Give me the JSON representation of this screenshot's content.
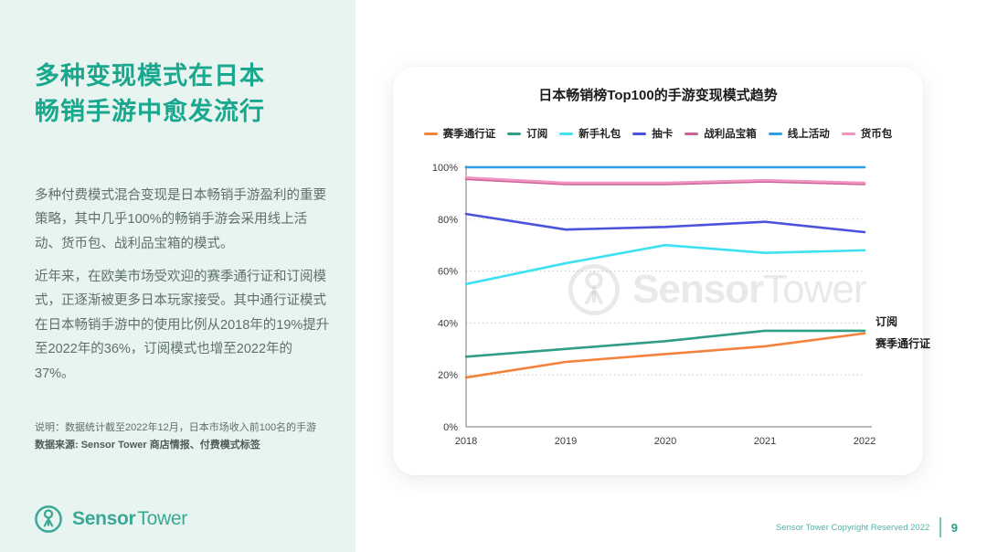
{
  "sidebar": {
    "title_line1": "多种变现模式在日本",
    "title_line2": "畅销手游中愈发流行",
    "paragraph1": "多种付费模式混合变现是日本畅销手游盈利的重要策略，其中几乎100%的畅销手游会采用线上活动、货币包、战利品宝箱的模式。",
    "paragraph2": "近年来，在欧美市场受欢迎的赛季通行证和订阅模式，正逐渐被更多日本玩家接受。其中通行证模式在日本畅销手游中的使用比例从2018年的19%提升至2022年的36%，订阅模式也增至2022年的37%。",
    "note_line1": "说明：数据统计截至2022年12月，日本市场收入前100名的手游",
    "note_line2": "数据来源: Sensor Tower 商店情报、付费模式标签",
    "logo": {
      "bold": "Sensor",
      "light": "Tower"
    }
  },
  "footer": {
    "copyright": "Sensor Tower Copyright Reserved 2022",
    "page_number": "9"
  },
  "chart_data": {
    "type": "line",
    "title": "日本畅销榜Top100的手游变现模式趋势",
    "x": [
      "2018",
      "2019",
      "2020",
      "2021",
      "2022"
    ],
    "ylim": [
      0,
      100
    ],
    "yticks": [
      "0%",
      "20%",
      "40%",
      "60%",
      "80%",
      "100%"
    ],
    "grid": "horizontal dotted lines at 20/40/60/80/100",
    "legend_position": "top",
    "series": [
      {
        "name": "赛季通行证",
        "color": "#F5823C",
        "values": [
          19,
          25,
          28,
          31,
          36
        ]
      },
      {
        "name": "订阅",
        "color": "#2F9D87",
        "values": [
          27,
          30,
          33,
          37,
          37
        ]
      },
      {
        "name": "新手礼包",
        "color": "#3EE1F2",
        "values": [
          55,
          63,
          70,
          67,
          68
        ]
      },
      {
        "name": "抽卡",
        "color": "#4B52DC",
        "values": [
          82,
          76,
          77,
          79,
          75
        ]
      },
      {
        "name": "战利品宝箱",
        "color": "#CC6299",
        "values": [
          95.5,
          93.5,
          93.5,
          94.5,
          93.5
        ]
      },
      {
        "name": "线上活动",
        "color": "#2E9FE9",
        "values": [
          100,
          100,
          100,
          100,
          100
        ]
      },
      {
        "name": "货币包",
        "color": "#F094C2",
        "values": [
          96,
          94,
          94,
          95,
          94
        ]
      }
    ],
    "end_labels": [
      "订阅",
      "赛季通行证"
    ],
    "watermark": {
      "bold": "Sensor",
      "light": "Tower"
    }
  }
}
